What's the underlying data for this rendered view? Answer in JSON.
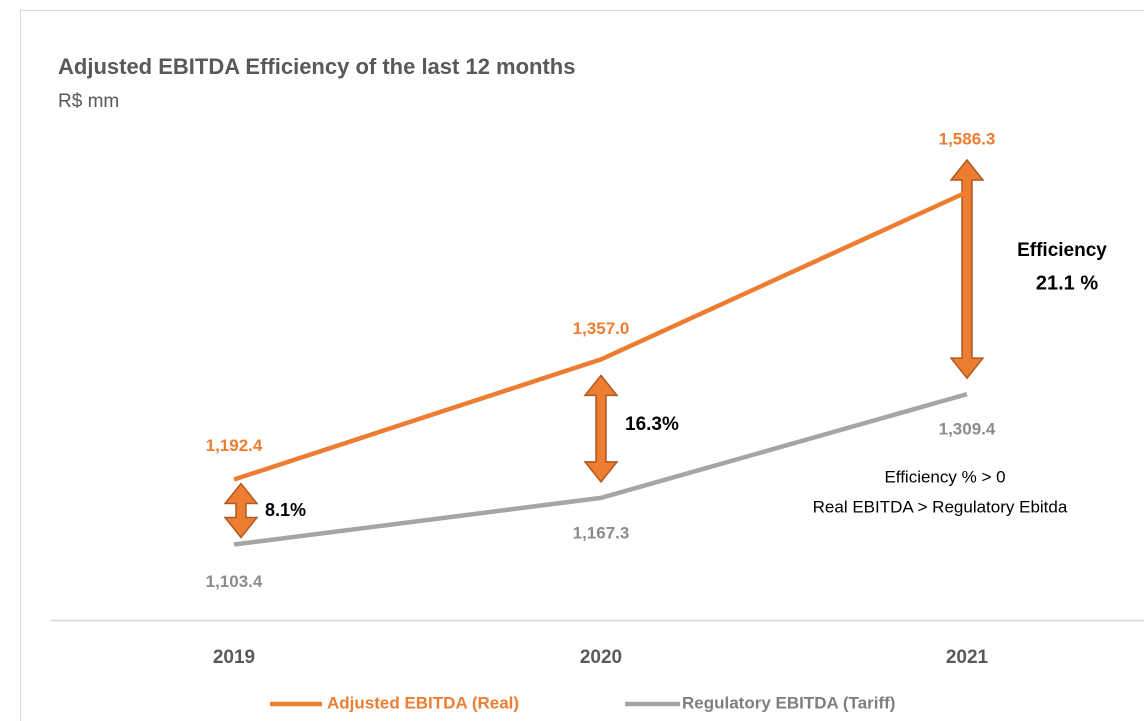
{
  "chart_data": {
    "type": "line",
    "title": "Adjusted EBITDA Efficiency of the last 12 months",
    "subtitle": "R$ mm",
    "categories": [
      "2019",
      "2020",
      "2021"
    ],
    "series": [
      {
        "name": "Adjusted EBITDA (Real)",
        "color": "#ed7d31",
        "values": [
          1192.4,
          1357.0,
          1586.3
        ],
        "value_labels": [
          "1,192.4",
          "1,357.0",
          "1,586.3"
        ]
      },
      {
        "name": "Regulatory EBITDA (Tariff)",
        "color": "#a5a5a5",
        "values": [
          1103.4,
          1167.3,
          1309.4
        ],
        "value_labels": [
          "1,103.4",
          "1,167.3",
          "1,309.4"
        ]
      }
    ],
    "ylim": [
      1000,
      1700
    ],
    "annotations": [
      "8.1%",
      "16.3%",
      "Efficiency",
      "21.1 %",
      "Efficiency % > 0",
      "Real EBITDA > Regulatory Ebitda"
    ],
    "legend": "bottom"
  }
}
